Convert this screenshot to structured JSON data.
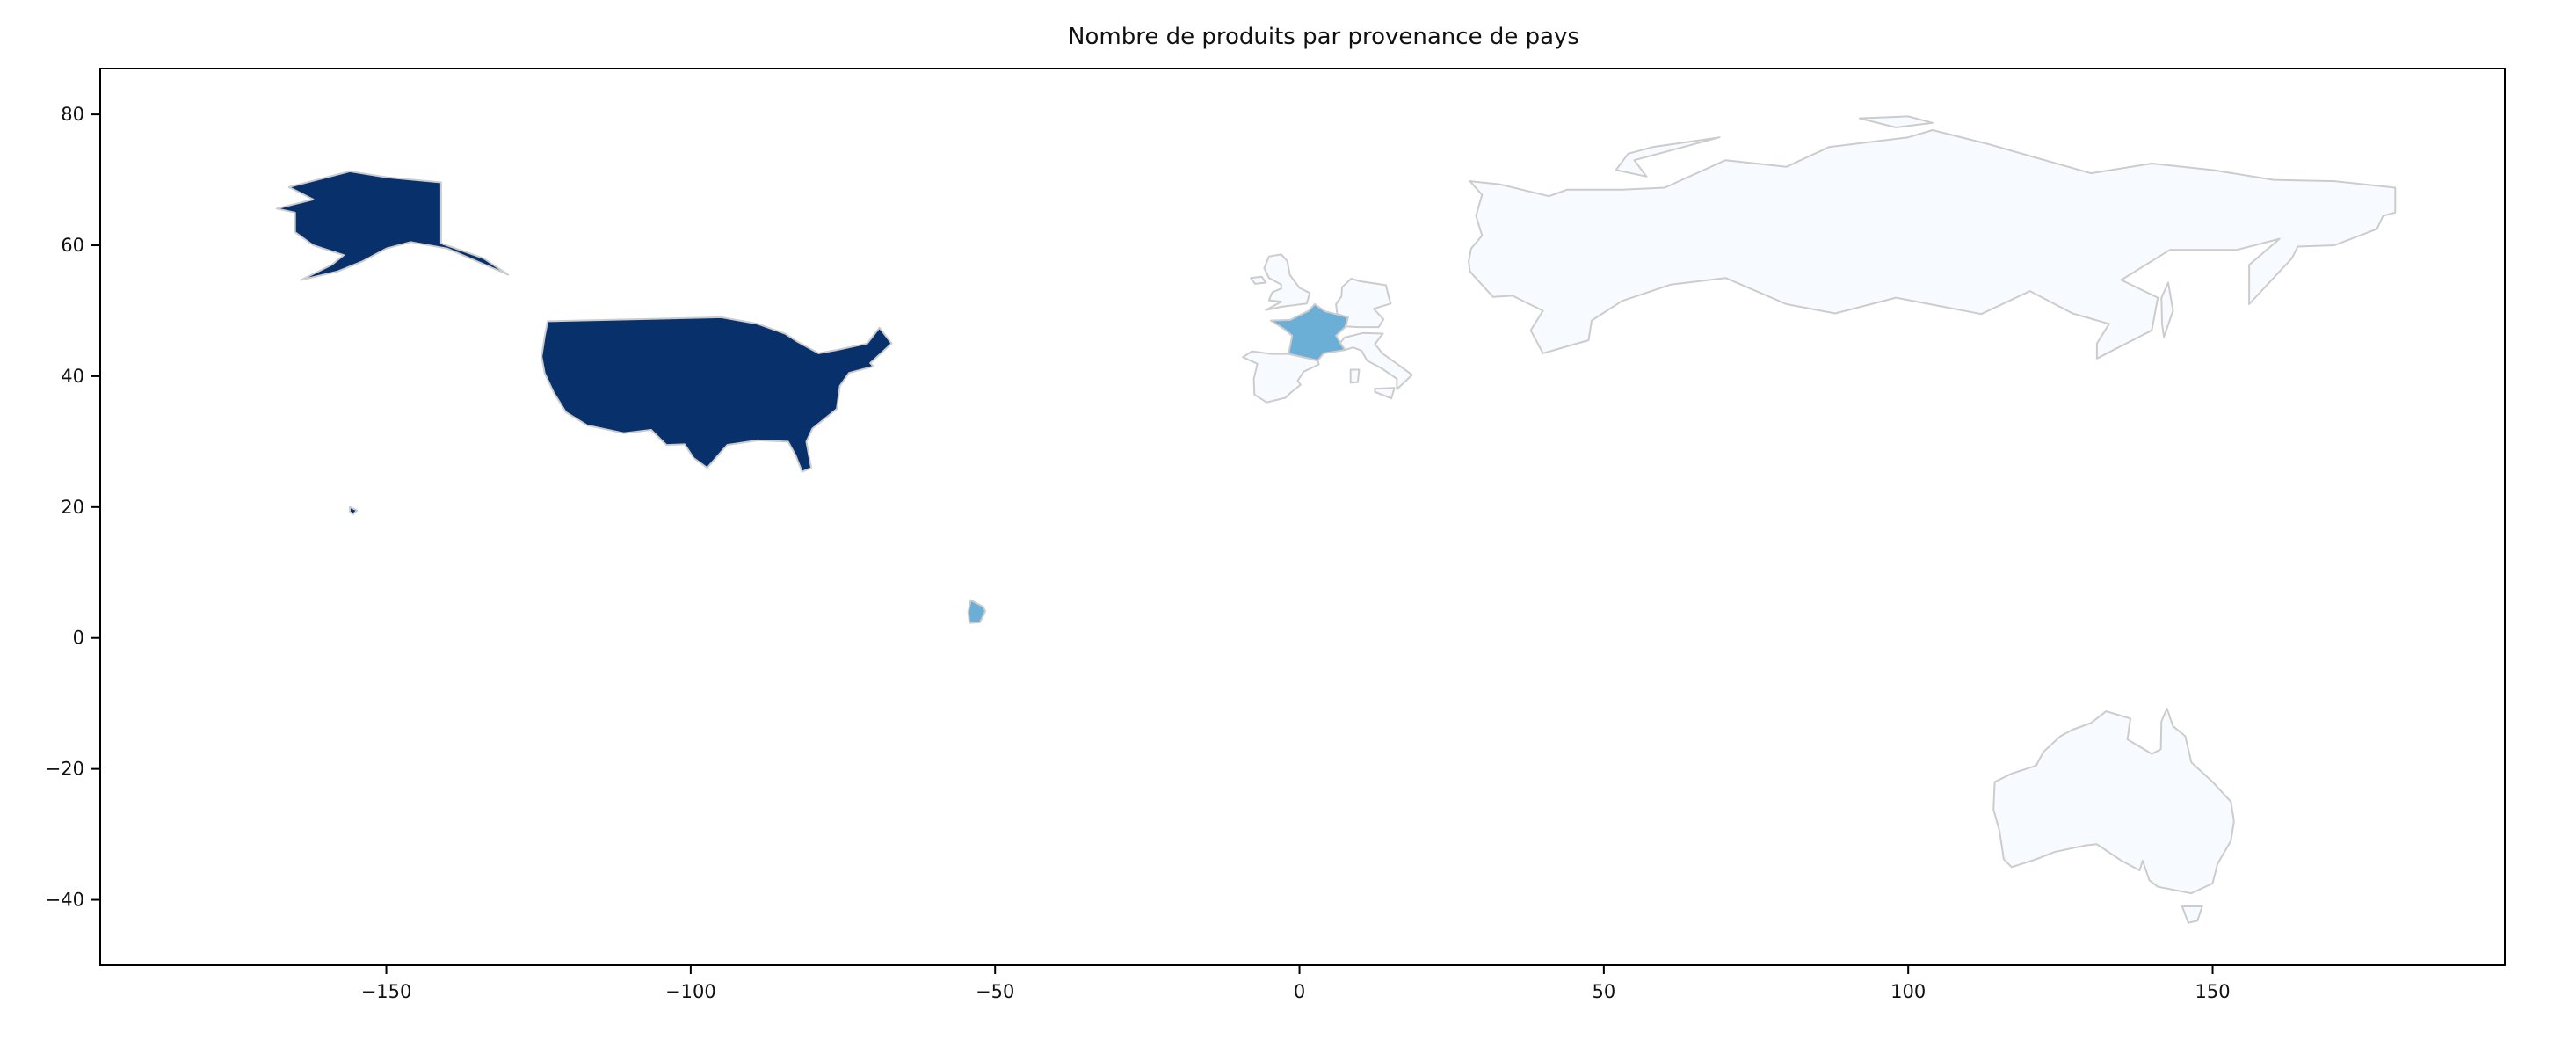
{
  "chart_data": {
    "type": "map",
    "title": "Nombre de produits par provenance de pays",
    "xlabel": "",
    "ylabel": "",
    "xlim": [
      -197,
      198
    ],
    "ylim": [
      -50,
      87
    ],
    "x_ticks": [
      -150,
      -100,
      -50,
      0,
      50,
      100,
      150
    ],
    "y_ticks": [
      80,
      60,
      40,
      20,
      0,
      -20,
      -40
    ],
    "x_tick_labels": [
      "−150",
      "−100",
      "−50",
      "0",
      "50",
      "100",
      "150"
    ],
    "y_tick_labels": [
      "80",
      "60",
      "40",
      "20",
      "0",
      "−20",
      "−40"
    ],
    "grid": false,
    "legend": "none",
    "colormap": "Blues",
    "border_color": "#cccccc",
    "regions": [
      {
        "name": "United States",
        "fill": "#08306b",
        "level": "highest"
      },
      {
        "name": "France",
        "fill": "#6baed6",
        "level": "medium"
      },
      {
        "name": "United Kingdom",
        "fill": "#f7fbff",
        "level": "lowest"
      },
      {
        "name": "Germany",
        "fill": "#f7fbff",
        "level": "lowest"
      },
      {
        "name": "Spain",
        "fill": "#f7fbff",
        "level": "lowest"
      },
      {
        "name": "Italy",
        "fill": "#f7fbff",
        "level": "lowest"
      },
      {
        "name": "Russia",
        "fill": "#f7fbff",
        "level": "lowest"
      },
      {
        "name": "Australia",
        "fill": "#f7fbff",
        "level": "lowest"
      }
    ]
  }
}
